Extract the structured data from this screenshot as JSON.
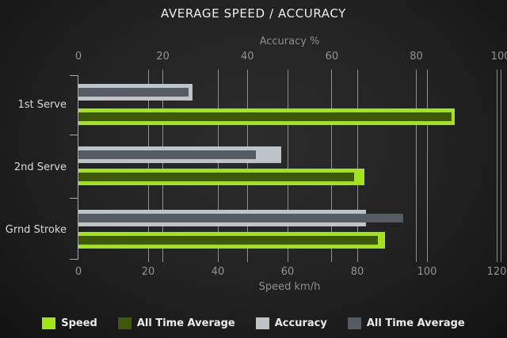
{
  "title": "AVERAGE SPEED / ACCURACY",
  "colors": {
    "background": "#1d1d1d",
    "speed": "#A3E417",
    "speed_all_time": "#3E5A08",
    "accuracy": "#BDC3C7",
    "accuracy_all_time": "#555B63",
    "gridline": "#8f8f8f",
    "title_text": "#ededed",
    "axis_text": "#949494",
    "category_text": "#dadada"
  },
  "chart_data": {
    "type": "bar",
    "orientation": "horizontal",
    "title": "AVERAGE SPEED / ACCURACY",
    "categories": [
      "1st Serve",
      "2nd Serve",
      "Grnd Stroke"
    ],
    "series": [
      {
        "name": "Speed",
        "axis": "bottom",
        "color": "#A3E417",
        "values": [
          108,
          82,
          88
        ]
      },
      {
        "name": "All Time Average",
        "axis": "bottom",
        "color": "#3E5A08",
        "values": [
          107,
          79,
          86
        ]
      },
      {
        "name": "Accuracy",
        "axis": "top",
        "color": "#BDC3C7",
        "values": [
          27,
          48,
          68
        ]
      },
      {
        "name": "All Time Average",
        "axis": "top",
        "color": "#555B63",
        "values": [
          26,
          42,
          77
        ]
      }
    ],
    "axes": {
      "top": {
        "label": "Accuracy %",
        "min": 0,
        "max": 100,
        "ticks": [
          0,
          20,
          40,
          60,
          80,
          100
        ]
      },
      "bottom": {
        "label": "Speed km/h",
        "min": 0,
        "max": 120,
        "ticks": [
          0,
          20,
          40,
          60,
          80,
          100,
          120
        ]
      }
    },
    "grid": true,
    "legend_position": "bottom"
  }
}
